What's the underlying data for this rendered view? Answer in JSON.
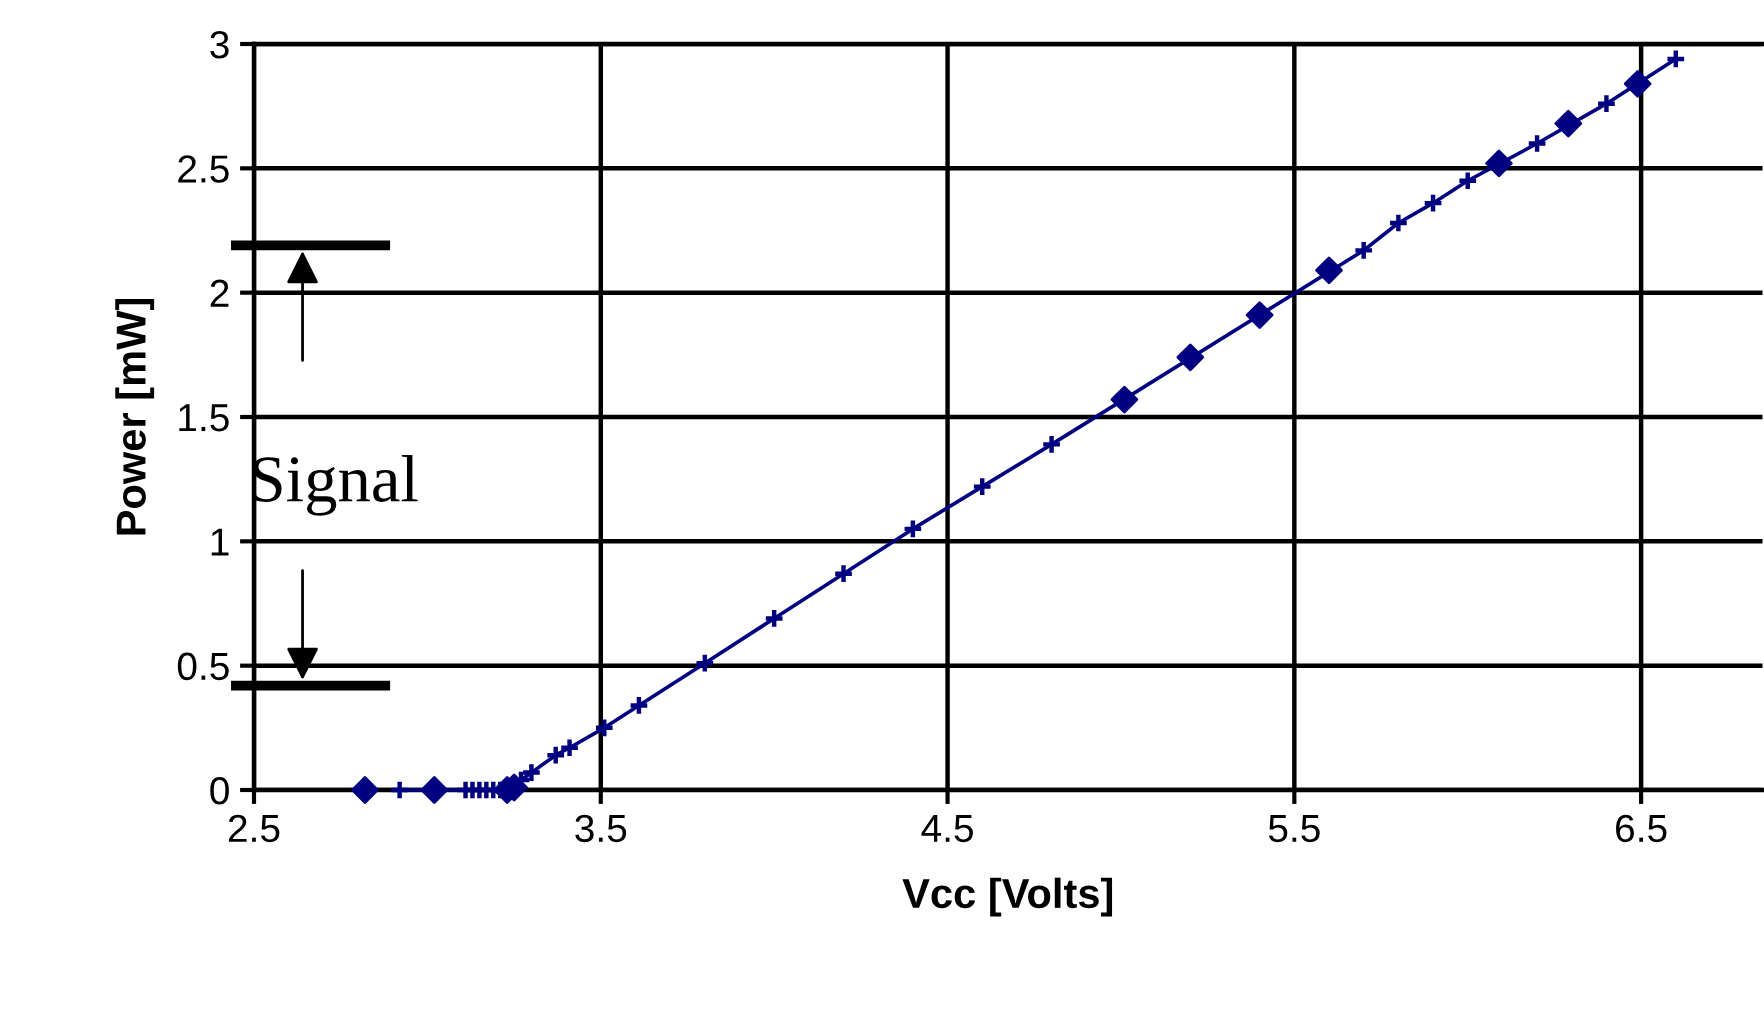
{
  "chart_data": {
    "type": "line",
    "xlabel": "Vcc [Volts]",
    "ylabel": "Power [mW]",
    "xlim": [
      2.5,
      6.85
    ],
    "ylim": [
      0,
      3
    ],
    "xticks": [
      2.5,
      3.5,
      4.5,
      5.5,
      6.5
    ],
    "yticks": [
      0,
      0.5,
      1,
      1.5,
      2,
      2.5,
      3
    ],
    "grid": true,
    "series": [
      {
        "marker": "cross",
        "color": "#000080",
        "x": [
          2.92,
          3.11,
          3.13,
          3.15,
          3.17,
          3.19,
          3.21,
          3.25,
          3.27,
          3.3,
          3.37,
          3.41,
          3.51,
          3.61,
          3.8,
          4.0,
          4.2,
          4.4,
          4.6,
          4.8,
          5.7,
          5.8,
          5.9,
          6.0,
          6.2,
          6.4,
          6.6
        ],
        "values": [
          0,
          0,
          0,
          0,
          0,
          0,
          0,
          0.02,
          0.04,
          0.07,
          0.14,
          0.17,
          0.25,
          0.34,
          0.51,
          0.69,
          0.87,
          1.05,
          1.22,
          1.39,
          2.17,
          2.28,
          2.36,
          2.45,
          2.6,
          2.76,
          2.94
        ]
      },
      {
        "type": "scatter",
        "marker": "diamond",
        "color": "#000080",
        "x": [
          2.82,
          3.02,
          3.23,
          3.25,
          5.01,
          5.2,
          5.4,
          5.6,
          6.09,
          6.29,
          6.49
        ],
        "values": [
          0,
          0,
          0,
          0.01,
          1.57,
          1.74,
          1.91,
          2.09,
          2.52,
          2.68,
          2.84
        ]
      }
    ],
    "ref_lines": [
      {
        "axis": "y",
        "value": 0.42,
        "color": "#000000"
      },
      {
        "axis": "y",
        "value": 2.19,
        "color": "#000000"
      }
    ],
    "annotations": [
      {
        "text": "Signal",
        "x": 2.64,
        "y": 0.42
      }
    ]
  }
}
